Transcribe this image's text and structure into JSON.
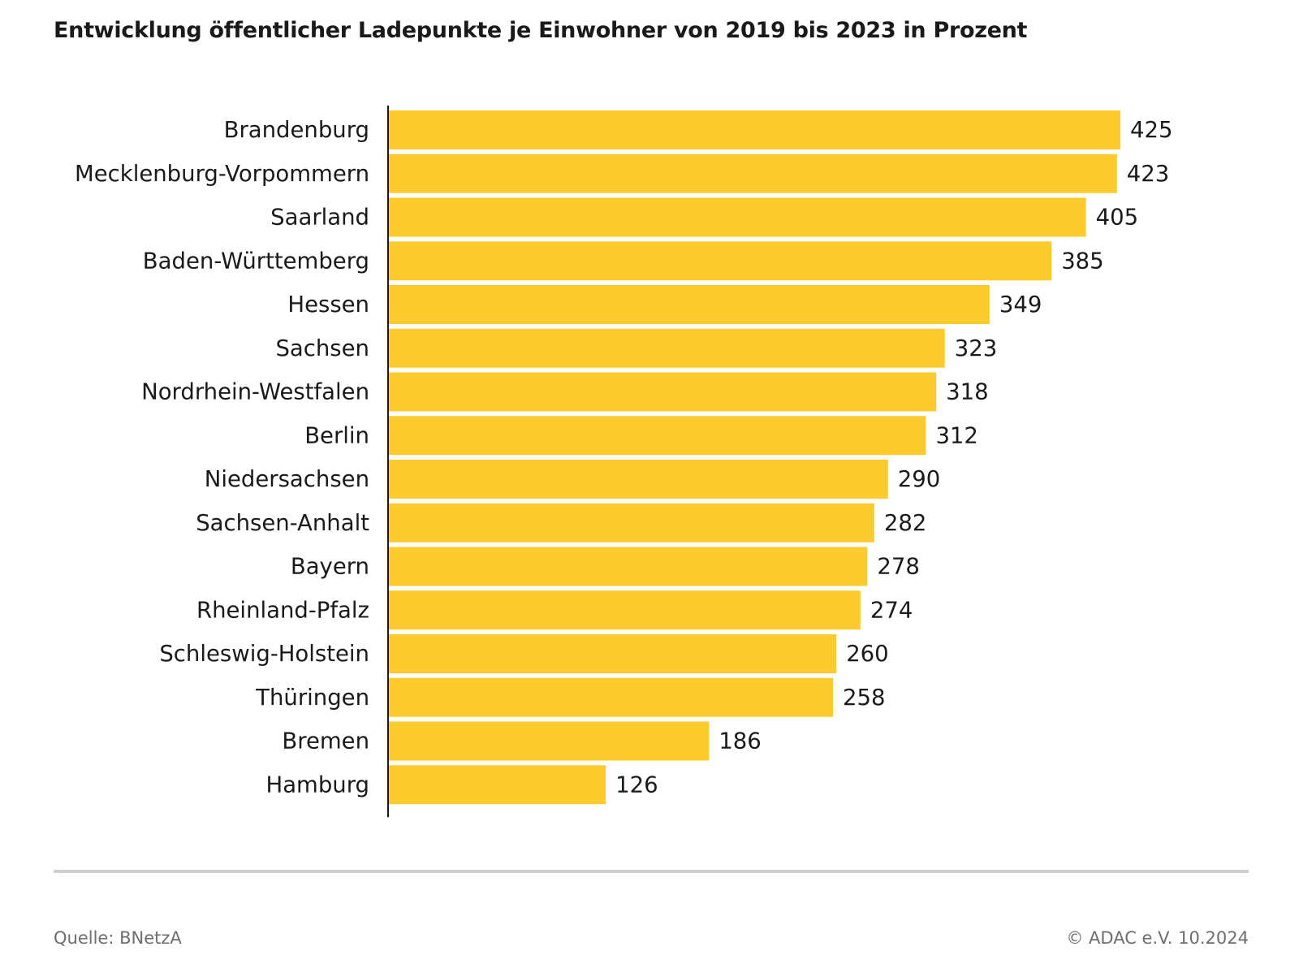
{
  "chart_data": {
    "type": "bar",
    "orientation": "horizontal",
    "title": "Entwicklung öffentlicher Ladepunkte je Einwohner von 2019 bis 2023 in Prozent",
    "categories": [
      "Brandenburg",
      "Mecklenburg-Vorpommern",
      "Saarland",
      "Baden-Württemberg",
      "Hessen",
      "Sachsen",
      "Nordrhein-Westfalen",
      "Berlin",
      "Niedersachsen",
      "Sachsen-Anhalt",
      "Bayern",
      "Rheinland-Pfalz",
      "Schleswig-Holstein",
      "Thüringen",
      "Bremen",
      "Hamburg"
    ],
    "values": [
      425,
      423,
      405,
      385,
      349,
      323,
      318,
      312,
      290,
      282,
      278,
      274,
      260,
      258,
      186,
      126
    ],
    "xlabel": "",
    "ylabel": "",
    "xlim": [
      0,
      425
    ],
    "grid": false,
    "bar_color": "#FCCB2E"
  },
  "footer": {
    "source": "Quelle: BNetzA",
    "copyright": "© ADAC e.V. 10.2024"
  },
  "colors": {
    "rule": "#cfcfcf",
    "axis": "#1a1a1a"
  }
}
